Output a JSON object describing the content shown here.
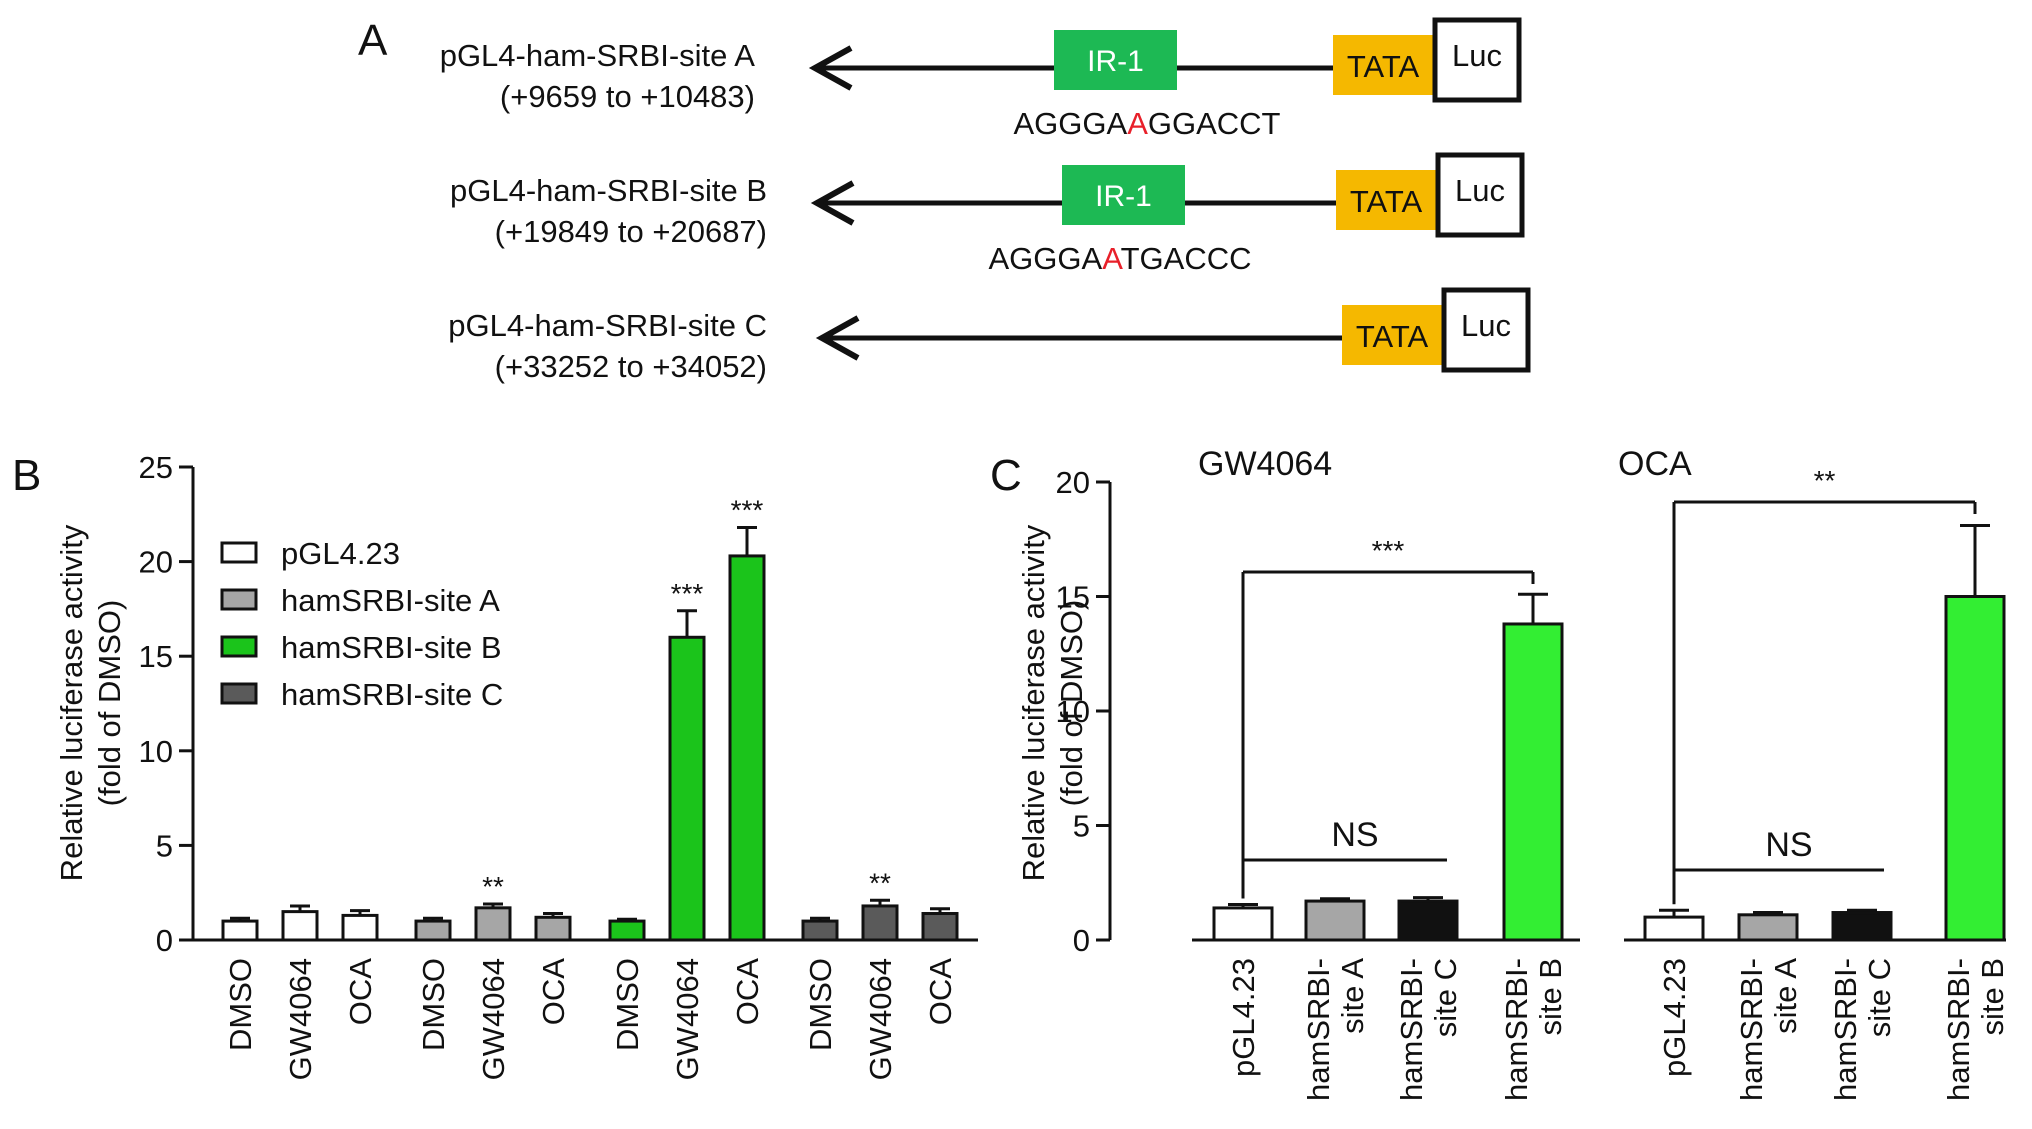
{
  "panel_a": {
    "letter": "A",
    "constructs": [
      {
        "name": "pGL4-ham-SRBI-site A",
        "range": "(+9659 to +10483)",
        "ir_label": "IR-1",
        "seq_before": "AGGGA",
        "seq_mut": "A",
        "seq_after": "GGACCT",
        "tata": "TATA",
        "luc": "Luc"
      },
      {
        "name": "pGL4-ham-SRBI-site B",
        "range": "(+19849 to +20687)",
        "ir_label": "IR-1",
        "seq_before": "AGGGA",
        "seq_mut": "A",
        "seq_after": "TGACCC",
        "tata": "TATA",
        "luc": "Luc"
      },
      {
        "name": "pGL4-ham-SRBI-site C",
        "range": "(+33252 to +34052)",
        "ir_label": "",
        "seq_before": "",
        "seq_mut": "",
        "seq_after": "",
        "tata": "TATA",
        "luc": "Luc"
      }
    ]
  },
  "colors": {
    "ir": "#1db954",
    "tata": "#f5b800",
    "mut": "#e8202a",
    "white": "#ffffff",
    "light_gray": "#a6a6a6",
    "green": "#1bc41b",
    "dark_gray": "#5a5a5a",
    "black": "#111111",
    "bright_green": "#33ee33"
  },
  "chart_data": [
    {
      "panel": "B",
      "type": "bar",
      "ylabel": "Relative luciferase activity",
      "ylabel2": "(fold of DMSO)",
      "ylim": [
        0,
        25
      ],
      "yticks": [
        0,
        5,
        10,
        15,
        20,
        25
      ],
      "legend": [
        {
          "label": "pGL4.23",
          "color": "#ffffff"
        },
        {
          "label": "hamSRBI-site A",
          "color": "#a6a6a6"
        },
        {
          "label": "hamSRBI-site B",
          "color": "#1bc41b"
        },
        {
          "label": "hamSRBI-site C",
          "color": "#5a5a5a"
        }
      ],
      "groups": [
        {
          "series": "pGL4.23",
          "color": "#ffffff",
          "bars": [
            {
              "label": "DMSO",
              "value": 1.0,
              "err": 0.15,
              "sig": ""
            },
            {
              "label": "GW4064",
              "value": 1.5,
              "err": 0.3,
              "sig": ""
            },
            {
              "label": "OCA",
              "value": 1.3,
              "err": 0.25,
              "sig": ""
            }
          ]
        },
        {
          "series": "hamSRBI-site A",
          "color": "#a6a6a6",
          "bars": [
            {
              "label": "DMSO",
              "value": 1.0,
              "err": 0.15,
              "sig": ""
            },
            {
              "label": "GW4064",
              "value": 1.7,
              "err": 0.2,
              "sig": "**"
            },
            {
              "label": "OCA",
              "value": 1.2,
              "err": 0.2,
              "sig": ""
            }
          ]
        },
        {
          "series": "hamSRBI-site B",
          "color": "#1bc41b",
          "bars": [
            {
              "label": "DMSO",
              "value": 1.0,
              "err": 0.1,
              "sig": ""
            },
            {
              "label": "GW4064",
              "value": 16.0,
              "err": 1.4,
              "sig": "***"
            },
            {
              "label": "OCA",
              "value": 20.3,
              "err": 1.5,
              "sig": "***"
            }
          ]
        },
        {
          "series": "hamSRBI-site C",
          "color": "#5a5a5a",
          "bars": [
            {
              "label": "DMSO",
              "value": 1.0,
              "err": 0.15,
              "sig": ""
            },
            {
              "label": "GW4064",
              "value": 1.8,
              "err": 0.3,
              "sig": "**"
            },
            {
              "label": "OCA",
              "value": 1.4,
              "err": 0.25,
              "sig": ""
            }
          ]
        }
      ]
    },
    {
      "panel": "C",
      "type": "bar",
      "ylabel": "Relative luciferase activity",
      "ylabel2": "(fold of DMSO)",
      "ylim": [
        0,
        20
      ],
      "yticks": [
        0,
        5,
        10,
        15,
        20
      ],
      "groups": [
        {
          "title": "GW4064",
          "bars": [
            {
              "label": "pGL4.23",
              "value": 1.4,
              "err": 0.15,
              "color": "#ffffff"
            },
            {
              "label": "hamSRBI- site A",
              "value": 1.7,
              "err": 0.1,
              "color": "#a6a6a6"
            },
            {
              "label": "hamSRBI- site C",
              "value": 1.7,
              "err": 0.15,
              "color": "#111111"
            },
            {
              "label": "hamSRBI- site B",
              "value": 13.8,
              "err": 1.3,
              "color": "#33ee33"
            }
          ],
          "ns_label": "NS",
          "sig_label": "***"
        },
        {
          "title": "OCA",
          "bars": [
            {
              "label": "pGL4.23",
              "value": 1.0,
              "err": 0.3,
              "color": "#ffffff"
            },
            {
              "label": "hamSRBI- site A",
              "value": 1.1,
              "err": 0.1,
              "color": "#a6a6a6"
            },
            {
              "label": "hamSRBI- site C",
              "value": 1.2,
              "err": 0.1,
              "color": "#111111"
            },
            {
              "label": "hamSRBI- site B",
              "value": 15.0,
              "err": 3.1,
              "color": "#33ee33"
            }
          ],
          "ns_label": "NS",
          "sig_label": "**"
        }
      ]
    }
  ]
}
